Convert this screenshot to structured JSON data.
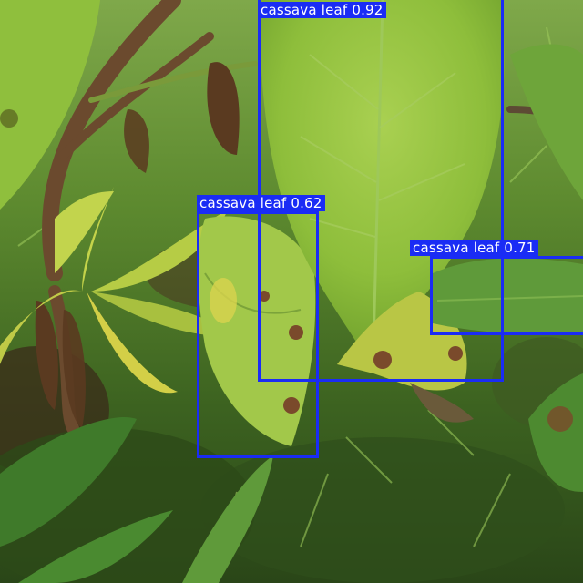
{
  "image": {
    "subject": "cassava plant in a garden",
    "palette": {
      "soil": "#3b2b1a",
      "ground_dark": "#2c3f1a",
      "ground_mid": "#4f7a28",
      "leaf_light": "#b9d65a",
      "leaf_mid": "#8fbf3d",
      "leaf_dark": "#5e8f2a",
      "leaf_yellow": "#d7d24a",
      "stem_brown": "#6b4a2e",
      "lesion": "#7a4a2b"
    }
  },
  "detection_color": "#1a2cf5",
  "detections": [
    {
      "label": "cassava leaf 0.92",
      "class": "cassava leaf",
      "confidence": 0.92
    },
    {
      "label": "cassava leaf 0.62",
      "class": "cassava leaf",
      "confidence": 0.62
    },
    {
      "label": "cassava leaf 0.71",
      "class": "cassava leaf",
      "confidence": 0.71
    }
  ]
}
